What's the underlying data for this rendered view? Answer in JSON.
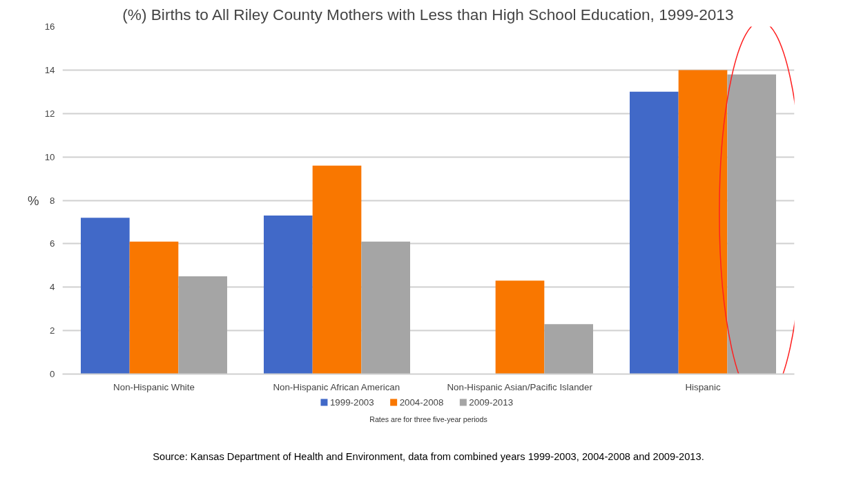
{
  "chart_data": {
    "type": "bar",
    "title": "(%) Births to All Riley County Mothers with Less than High School Education, 1999-2013",
    "ylabel": "%",
    "categories": [
      "Non-Hispanic White",
      "Non-Hispanic African American",
      "Non-Hispanic Asian/Pacific Islander",
      "Hispanic"
    ],
    "series": [
      {
        "name": "1999-2003",
        "color": "#4169c8",
        "values": [
          7.2,
          7.3,
          null,
          13.0
        ]
      },
      {
        "name": "2004-2008",
        "color": "#f97700",
        "values": [
          6.1,
          9.6,
          4.3,
          14.0
        ]
      },
      {
        "name": "2009-2013",
        "color": "#a5a5a5",
        "values": [
          4.5,
          6.1,
          2.3,
          13.8
        ]
      }
    ],
    "ylim": [
      0,
      16
    ],
    "yticks": [
      0,
      2,
      4,
      6,
      8,
      10,
      12,
      14,
      16
    ],
    "grid": "y",
    "legend": "bottom",
    "annotations": [
      "Rates are for three five-year periods",
      "Source: Kansas Department of Health and Environment, data from combined years 1999-2003, 2004-2008 and 2009-2013."
    ]
  }
}
